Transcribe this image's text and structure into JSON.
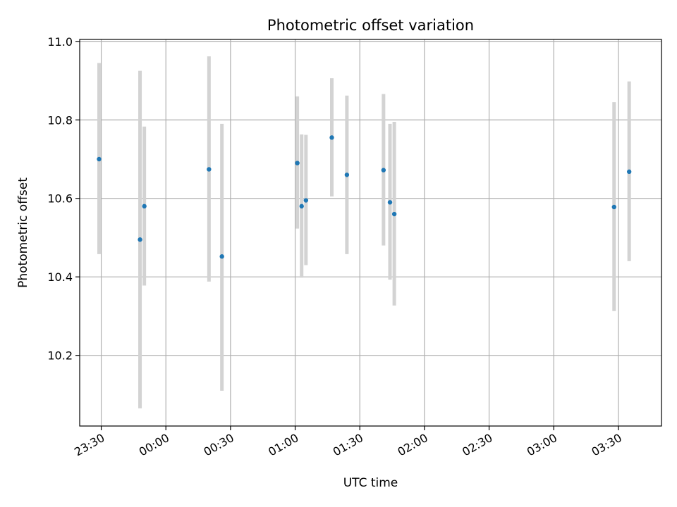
{
  "chart_data": {
    "type": "scatter",
    "title": "Photometric offset variation",
    "xlabel": "UTC time",
    "ylabel": "Photometric offset",
    "xlim": [
      "23:20",
      "03:50"
    ],
    "ylim": [
      10.02,
      11.005
    ],
    "grid": true,
    "colors": {
      "point": "#1f77b4",
      "errorbar": "#d3d3d3",
      "grid": "#b0b0b0"
    },
    "xticks": [
      "23:30",
      "00:00",
      "00:30",
      "01:00",
      "01:30",
      "02:00",
      "02:30",
      "03:00",
      "03:30"
    ],
    "yticks": [
      "10.2",
      "10.4",
      "10.6",
      "10.8",
      "11.0"
    ],
    "points": [
      {
        "x": "23:29",
        "y": 10.7,
        "lower": 10.458,
        "upper": 10.945
      },
      {
        "x": "23:48",
        "y": 10.495,
        "lower": 10.065,
        "upper": 10.925
      },
      {
        "x": "23:50",
        "y": 10.58,
        "lower": 10.378,
        "upper": 10.783
      },
      {
        "x": "00:20",
        "y": 10.674,
        "lower": 10.388,
        "upper": 10.962
      },
      {
        "x": "00:26",
        "y": 10.452,
        "lower": 10.11,
        "upper": 10.79
      },
      {
        "x": "01:01",
        "y": 10.69,
        "lower": 10.523,
        "upper": 10.86
      },
      {
        "x": "01:03",
        "y": 10.58,
        "lower": 10.398,
        "upper": 10.763
      },
      {
        "x": "01:05",
        "y": 10.595,
        "lower": 10.43,
        "upper": 10.762
      },
      {
        "x": "01:17",
        "y": 10.755,
        "lower": 10.605,
        "upper": 10.906
      },
      {
        "x": "01:24",
        "y": 10.66,
        "lower": 10.458,
        "upper": 10.862
      },
      {
        "x": "01:41",
        "y": 10.672,
        "lower": 10.48,
        "upper": 10.866
      },
      {
        "x": "01:44",
        "y": 10.59,
        "lower": 10.393,
        "upper": 10.79
      },
      {
        "x": "01:46",
        "y": 10.56,
        "lower": 10.327,
        "upper": 10.795
      },
      {
        "x": "03:28",
        "y": 10.578,
        "lower": 10.313,
        "upper": 10.845
      },
      {
        "x": "03:35",
        "y": 10.668,
        "lower": 10.44,
        "upper": 10.898
      }
    ]
  }
}
